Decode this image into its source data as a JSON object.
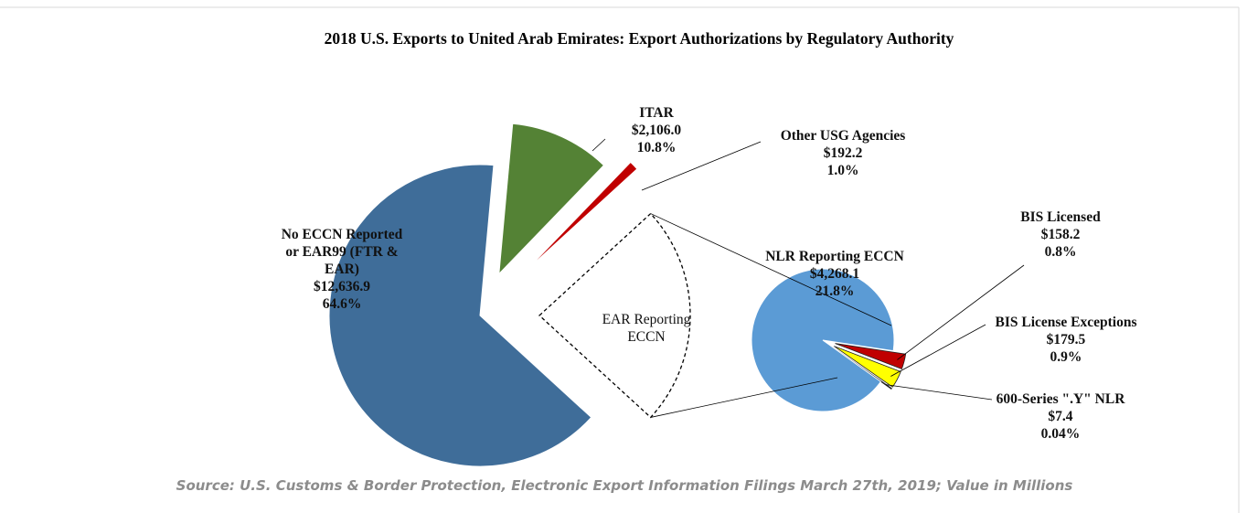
{
  "chart_data": {
    "type": "pie_of_pie",
    "title": "2018 U.S. Exports to United Arab Emirates: Export Authorizations by Regulatory Authority",
    "source": "Source: U.S. Customs & Border Protection, Electronic Export Information Filings March 27th, 2019; Value in Millions",
    "slices": [
      {
        "name": "ITAR",
        "value": 2106.0,
        "value_label": "$2,106.0",
        "percent": 10.8,
        "percent_label": "10.8%",
        "color": "#548235"
      },
      {
        "name": "Other USG Agencies",
        "value": 192.2,
        "value_label": "$192.2",
        "percent": 1.0,
        "percent_label": "1.0%",
        "color": "#c00000"
      },
      {
        "name": "No ECCN Reported or EAR99 (FTR & EAR)",
        "value": 12636.9,
        "value_label": "$12,636.9",
        "percent": 64.6,
        "percent_label": "64.6%",
        "color": "#3f6d99"
      }
    ],
    "secondary": {
      "name": "EAR Reporting ECCN",
      "slices": [
        {
          "name": "BIS Licensed",
          "value": 158.2,
          "value_label": "$158.2",
          "percent": 0.8,
          "percent_label": "0.8%",
          "color": "#c00000"
        },
        {
          "name": "BIS License Exceptions",
          "value": 179.5,
          "value_label": "$179.5",
          "percent": 0.9,
          "percent_label": "0.9%",
          "color": "#ffff00"
        },
        {
          "name": "600-Series \".Y\" NLR",
          "value": 7.4,
          "value_label": "$7.4",
          "percent": 0.04,
          "percent_label": "0.04%",
          "color": "#ed7d31"
        },
        {
          "name": "NLR Reporting ECCN",
          "value": 4268.1,
          "value_label": "$4,268.1",
          "percent": 21.8,
          "percent_label": "21.8%",
          "color": "#5b9bd5"
        }
      ]
    }
  }
}
